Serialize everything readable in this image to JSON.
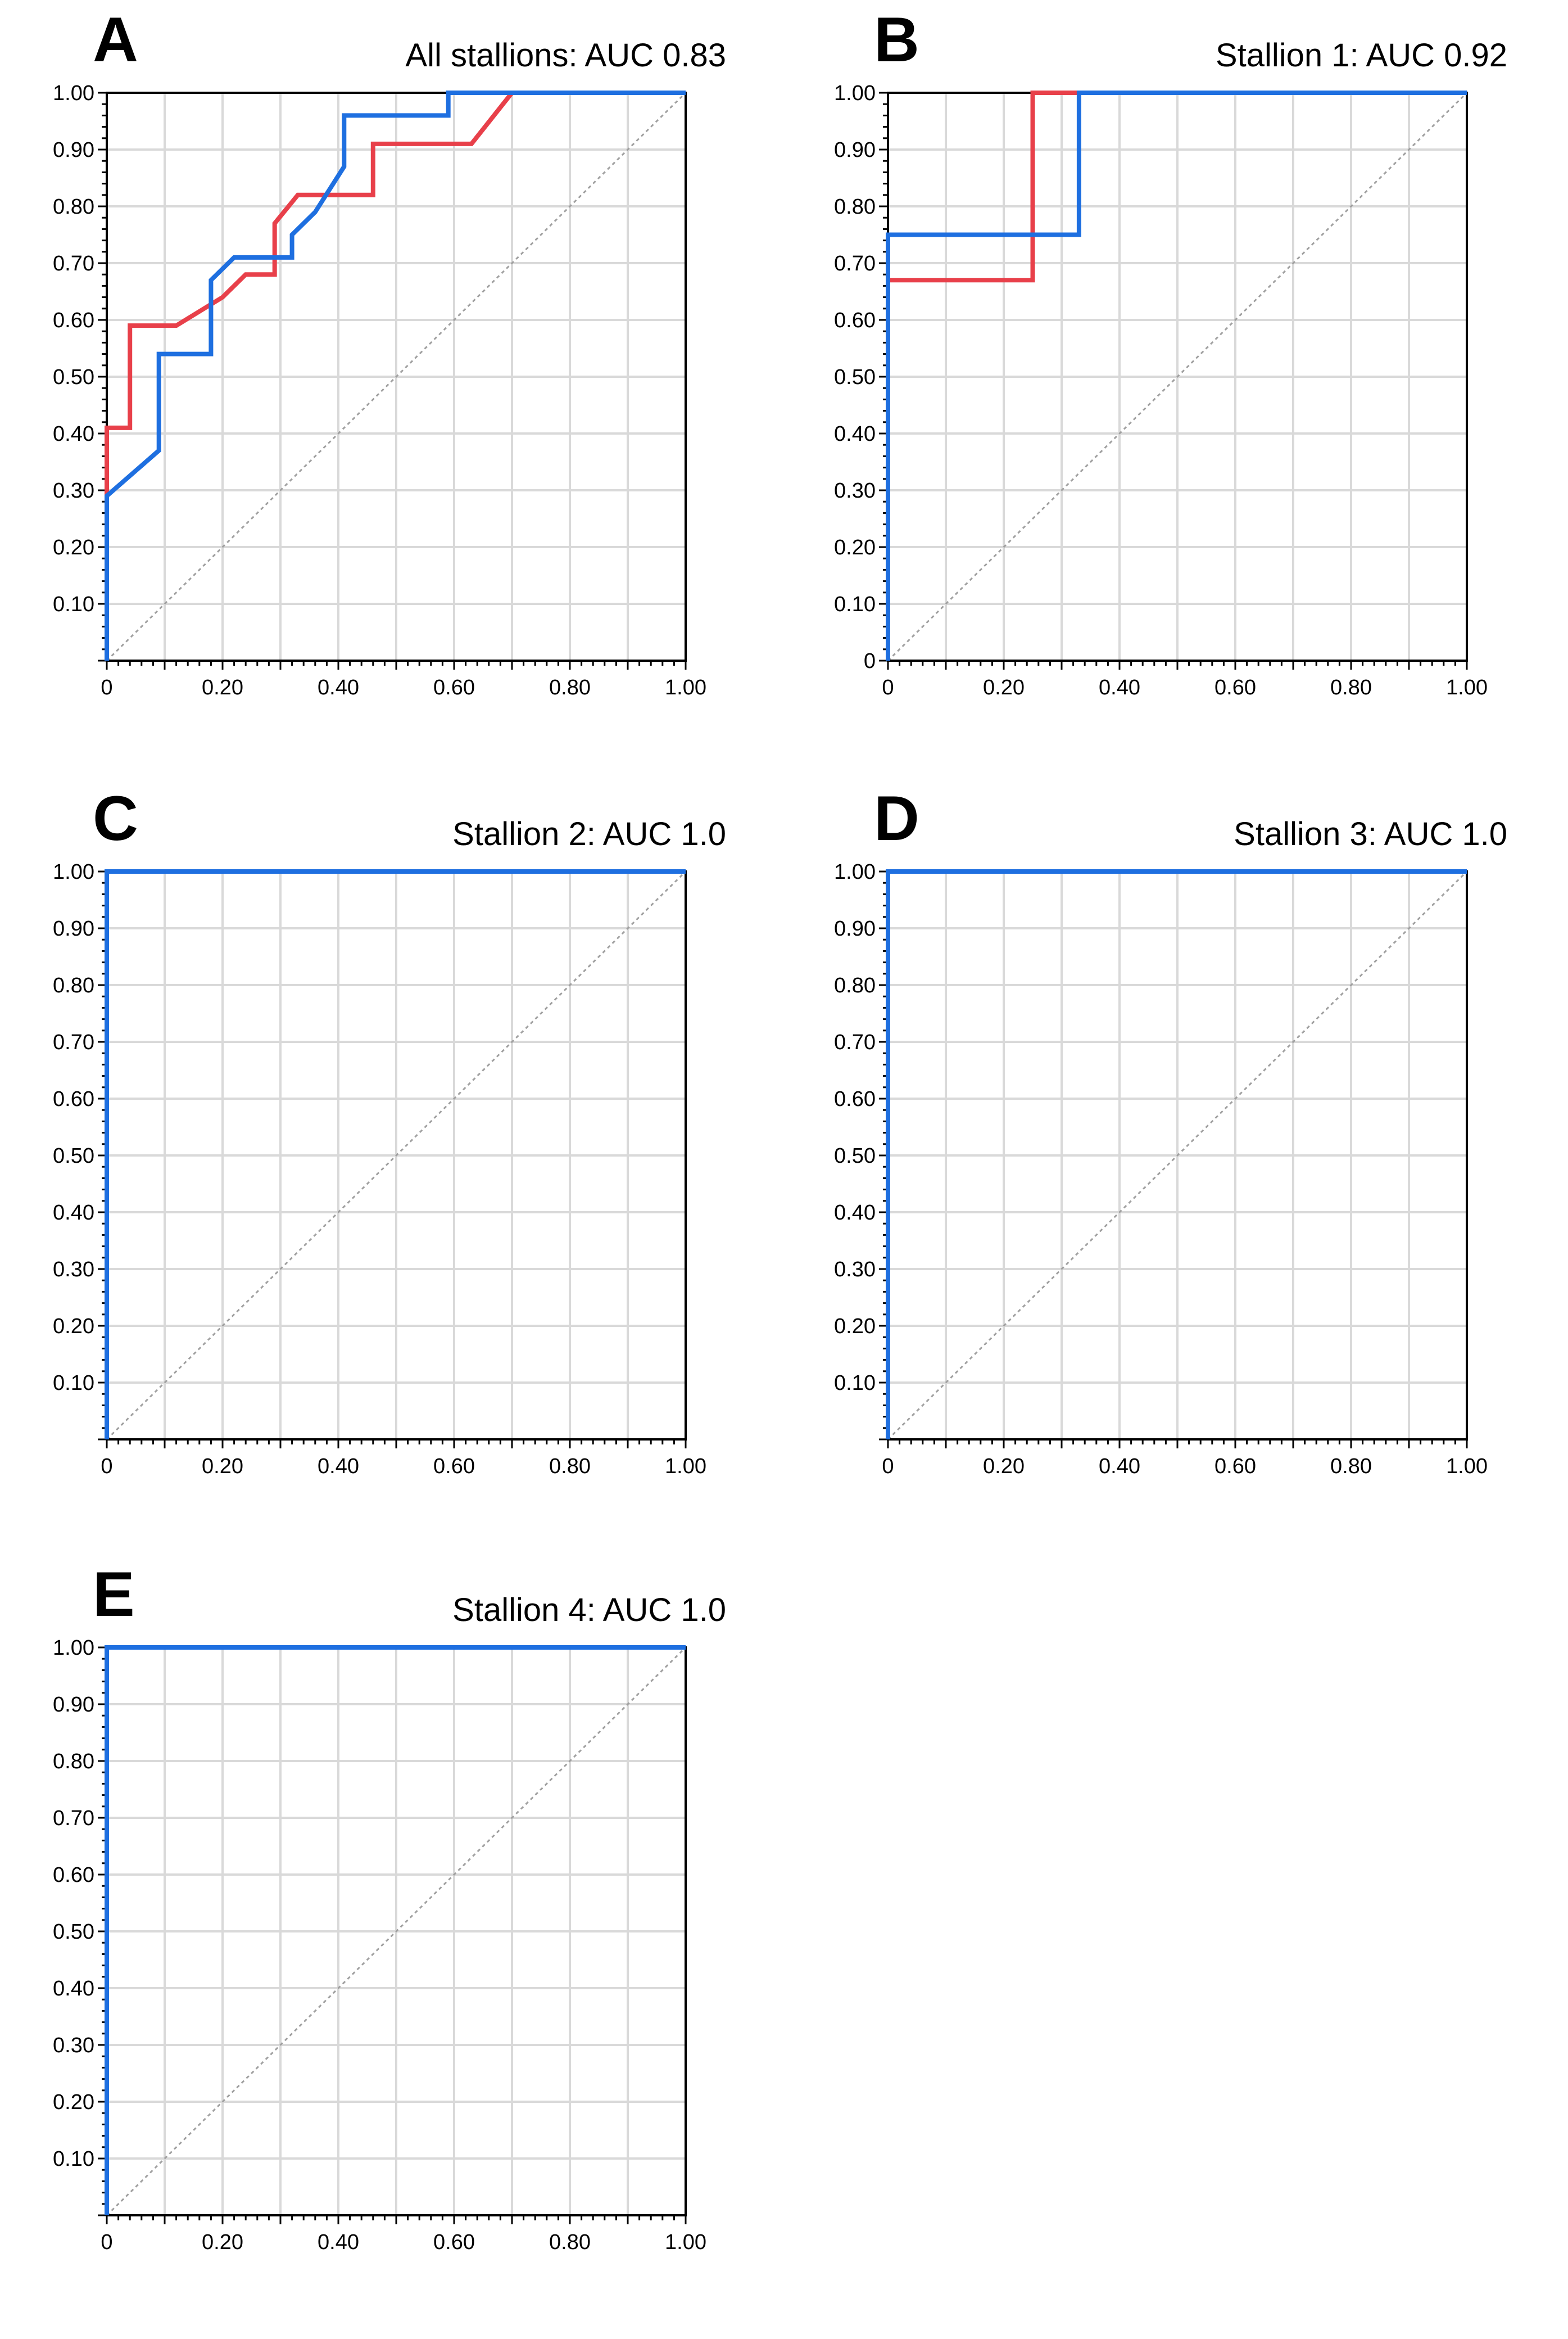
{
  "colors": {
    "red": "#e8404a",
    "blue": "#1e6fe0",
    "grid": "#d9d9d9",
    "diagonal": "#a0a0a0"
  },
  "chart_data": [
    {
      "panel": "A",
      "type": "line",
      "title": "All stallions: AUC 0.83",
      "xlabel": "",
      "ylabel": "",
      "xlim": [
        0,
        1
      ],
      "ylim": [
        0,
        1
      ],
      "x_ticks": [
        "0",
        "0.20",
        "0.40",
        "0.60",
        "0.80",
        "1.00"
      ],
      "y_ticks": [
        "0.10",
        "0.20",
        "0.30",
        "0.40",
        "0.50",
        "0.60",
        "0.70",
        "0.80",
        "0.90",
        "1.00"
      ],
      "grid": true,
      "reference_line": "diagonal",
      "series": [
        {
          "name": "red",
          "color": "#e8404a",
          "x": [
            0,
            0,
            0.04,
            0.04,
            0.12,
            0.2,
            0.24,
            0.29,
            0.29,
            0.33,
            0.46,
            0.46,
            0.63,
            0.7,
            1.0
          ],
          "y": [
            0,
            0.41,
            0.41,
            0.59,
            0.59,
            0.64,
            0.68,
            0.68,
            0.77,
            0.82,
            0.82,
            0.91,
            0.91,
            1.0,
            1.0
          ]
        },
        {
          "name": "blue",
          "color": "#1e6fe0",
          "x": [
            0,
            0,
            0.09,
            0.09,
            0.18,
            0.18,
            0.22,
            0.32,
            0.32,
            0.36,
            0.41,
            0.41,
            0.59,
            0.59,
            1.0
          ],
          "y": [
            0,
            0.29,
            0.37,
            0.54,
            0.54,
            0.67,
            0.71,
            0.71,
            0.75,
            0.79,
            0.87,
            0.96,
            0.96,
            1.0,
            1.0
          ]
        }
      ]
    },
    {
      "panel": "B",
      "type": "line",
      "title": "Stallion 1: AUC 0.92",
      "xlabel": "",
      "ylabel": "",
      "xlim": [
        0,
        1
      ],
      "ylim": [
        0,
        1
      ],
      "x_ticks": [
        "0",
        "0.20",
        "0.40",
        "0.60",
        "0.80",
        "1.00"
      ],
      "y_ticks": [
        "0",
        "0.10",
        "0.20",
        "0.30",
        "0.40",
        "0.50",
        "0.60",
        "0.70",
        "0.80",
        "0.90",
        "1.00"
      ],
      "grid": true,
      "reference_line": "diagonal",
      "series": [
        {
          "name": "red",
          "color": "#e8404a",
          "x": [
            0,
            0,
            0.25,
            0.25,
            0.33,
            1.0
          ],
          "y": [
            0,
            0.67,
            0.67,
            1.0,
            1.0,
            1.0
          ]
        },
        {
          "name": "blue",
          "color": "#1e6fe0",
          "x": [
            0,
            0,
            0.33,
            0.33,
            1.0
          ],
          "y": [
            0,
            0.75,
            0.75,
            1.0,
            1.0
          ]
        }
      ]
    },
    {
      "panel": "C",
      "type": "line",
      "title": "Stallion 2: AUC 1.0",
      "xlabel": "",
      "ylabel": "",
      "xlim": [
        0,
        1
      ],
      "ylim": [
        0,
        1
      ],
      "x_ticks": [
        "0",
        "0.20",
        "0.40",
        "0.60",
        "0.80",
        "1.00"
      ],
      "y_ticks": [
        "0.10",
        "0.20",
        "0.30",
        "0.40",
        "0.50",
        "0.60",
        "0.70",
        "0.80",
        "0.90",
        "1.00"
      ],
      "grid": true,
      "reference_line": "diagonal",
      "series": [
        {
          "name": "blue",
          "color": "#1e6fe0",
          "x": [
            0,
            0,
            1.0
          ],
          "y": [
            0,
            1.0,
            1.0
          ]
        }
      ]
    },
    {
      "panel": "D",
      "type": "line",
      "title": "Stallion 3: AUC 1.0",
      "xlabel": "",
      "ylabel": "",
      "xlim": [
        0,
        1
      ],
      "ylim": [
        0,
        1
      ],
      "x_ticks": [
        "0",
        "0.20",
        "0.40",
        "0.60",
        "0.80",
        "1.00"
      ],
      "y_ticks": [
        "0.10",
        "0.20",
        "0.30",
        "0.40",
        "0.50",
        "0.60",
        "0.70",
        "0.80",
        "0.90",
        "1.00"
      ],
      "grid": true,
      "reference_line": "diagonal",
      "series": [
        {
          "name": "blue",
          "color": "#1e6fe0",
          "x": [
            0,
            0,
            1.0
          ],
          "y": [
            0,
            1.0,
            1.0
          ]
        }
      ]
    },
    {
      "panel": "E",
      "type": "line",
      "title": "Stallion 4: AUC 1.0",
      "xlabel": "",
      "ylabel": "",
      "xlim": [
        0,
        1
      ],
      "ylim": [
        0,
        1
      ],
      "x_ticks": [
        "0",
        "0.20",
        "0.40",
        "0.60",
        "0.80",
        "1.00"
      ],
      "y_ticks": [
        "0.10",
        "0.20",
        "0.30",
        "0.40",
        "0.50",
        "0.60",
        "0.70",
        "0.80",
        "0.90",
        "1.00"
      ],
      "grid": true,
      "reference_line": "diagonal",
      "series": [
        {
          "name": "blue",
          "color": "#1e6fe0",
          "x": [
            0,
            0,
            1.0
          ],
          "y": [
            0,
            1.0,
            1.0
          ]
        }
      ]
    }
  ]
}
